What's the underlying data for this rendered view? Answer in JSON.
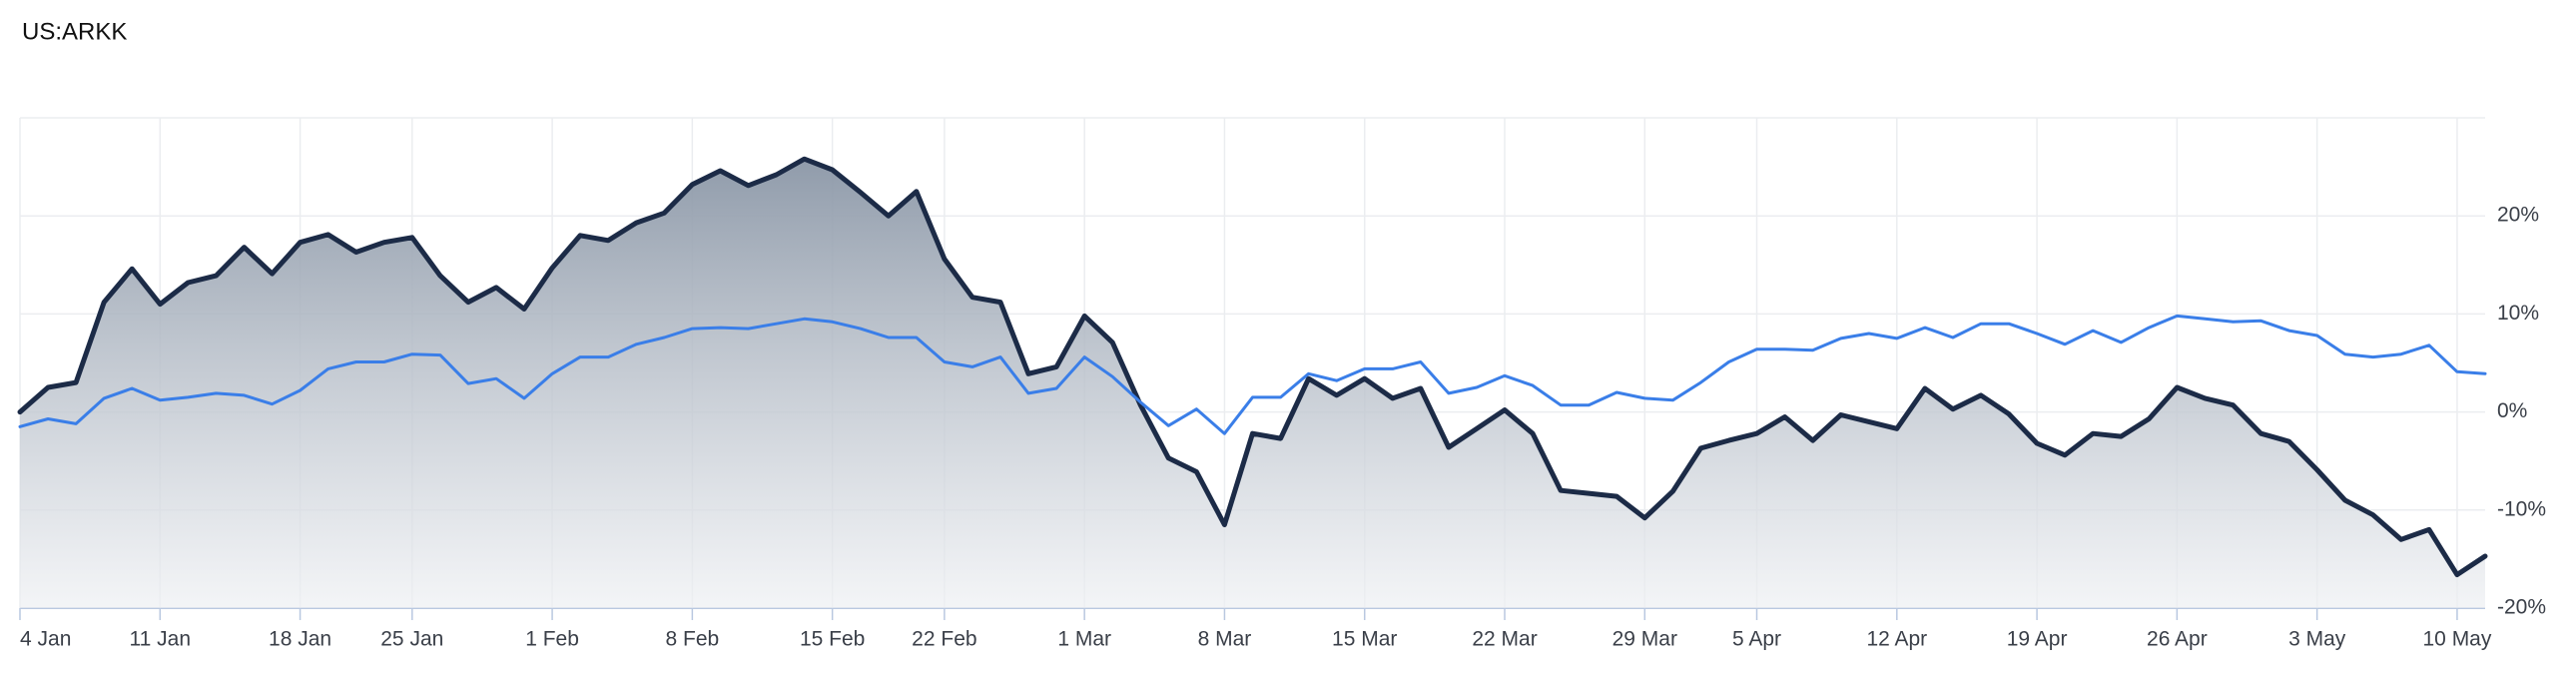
{
  "chart_data": {
    "type": "line",
    "title": "US:ARKK",
    "categories": [
      "4 Jan",
      null,
      null,
      null,
      null,
      "11 Jan",
      null,
      null,
      null,
      null,
      "18 Jan",
      null,
      null,
      null,
      "25 Jan",
      null,
      null,
      null,
      null,
      "1 Feb",
      null,
      null,
      null,
      null,
      "8 Feb",
      null,
      null,
      null,
      null,
      "15 Feb",
      null,
      null,
      null,
      "22 Feb",
      null,
      null,
      null,
      null,
      "1 Mar",
      null,
      null,
      null,
      null,
      "8 Mar",
      null,
      null,
      null,
      null,
      "15 Mar",
      null,
      null,
      null,
      null,
      "22 Mar",
      null,
      null,
      null,
      null,
      "29 Mar",
      null,
      null,
      null,
      "5 Apr",
      null,
      null,
      null,
      null,
      "12 Apr",
      null,
      null,
      null,
      null,
      "19 Apr",
      null,
      null,
      null,
      null,
      "26 Apr",
      null,
      null,
      null,
      null,
      "3 May",
      null,
      null,
      null,
      null,
      "10 May",
      null
    ],
    "series": [
      {
        "color": "#1c2b47",
        "area": true,
        "values": [
          0,
          2.5,
          3,
          11.2,
          14.6,
          11,
          13.2,
          13.9,
          16.8,
          14.1,
          17.3,
          18.1,
          16.3,
          17.3,
          17.8,
          13.9,
          11.2,
          12.7,
          10.5,
          14.7,
          18,
          17.5,
          19.3,
          20.3,
          23.2,
          24.6,
          23.1,
          24.2,
          25.8,
          24.7,
          22.4,
          20,
          22.5,
          15.6,
          11.7,
          11.2,
          3.9,
          4.6,
          9.8,
          7.1,
          0.7,
          -4.7,
          -6.1,
          -11.5,
          -2.2,
          -2.7,
          3.4,
          1.7,
          3.4,
          1.4,
          2.4,
          -3.6,
          -1.7,
          0.2,
          -2.2,
          -8,
          -8.3,
          -8.6,
          -10.8,
          -8.1,
          -3.7,
          -2.9,
          -2.2,
          -0.5,
          -2.9,
          -0.3,
          -1,
          -1.7,
          2.4,
          0.3,
          1.7,
          -0.2,
          -3.2,
          -4.4,
          -2.2,
          -2.5,
          -0.7,
          2.5,
          1.4,
          0.7,
          -2.2,
          -3,
          -5.9,
          -9,
          -10.5,
          -13,
          -12,
          -16.6,
          -14.7
        ]
      },
      {
        "color": "#3a7ee8",
        "values": [
          -1.5,
          -0.7,
          -1.2,
          1.4,
          2.4,
          1.2,
          1.5,
          1.9,
          1.7,
          0.8,
          2.2,
          4.4,
          5.1,
          5.1,
          5.9,
          5.8,
          2.9,
          3.4,
          1.4,
          3.9,
          5.6,
          5.6,
          6.9,
          7.6,
          8.5,
          8.6,
          8.5,
          9,
          9.5,
          9.2,
          8.5,
          7.6,
          7.6,
          5.1,
          4.6,
          5.6,
          1.9,
          2.4,
          5.6,
          3.6,
          1,
          -1.4,
          0.3,
          -2.2,
          1.5,
          1.5,
          3.9,
          3.2,
          4.4,
          4.4,
          5.1,
          1.9,
          2.5,
          3.7,
          2.7,
          0.7,
          0.7,
          2,
          1.4,
          1.2,
          3,
          5.1,
          6.4,
          6.4,
          6.3,
          7.5,
          8,
          7.5,
          8.6,
          7.6,
          9,
          9,
          8,
          6.9,
          8.3,
          7.1,
          8.6,
          9.8,
          9.5,
          9.2,
          9.3,
          8.3,
          7.8,
          5.9,
          5.6,
          5.9,
          6.8,
          4.1,
          3.9
        ]
      }
    ],
    "ylim": [
      -20,
      30
    ],
    "yticks": [
      {
        "value": -20,
        "label": "-20%"
      },
      {
        "value": -10,
        "label": "-10%"
      },
      {
        "value": 0,
        "label": "0%"
      },
      {
        "value": 10,
        "label": "10%"
      },
      {
        "value": 20,
        "label": "20%"
      }
    ],
    "grid": true
  }
}
